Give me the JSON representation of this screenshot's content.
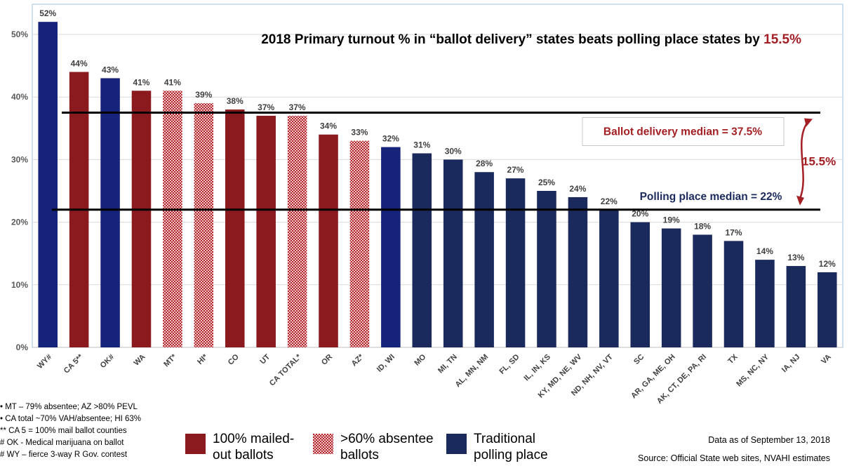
{
  "chart_data": {
    "type": "bar",
    "title_prefix": "2018 Primary turnout % in “ballot delivery” states beats polling place states by",
    "title_highlight": "15.5%",
    "categories": [
      "WY#",
      "CA 5**",
      "OK#",
      "WA",
      "MT*",
      "HI*",
      "CO",
      "UT",
      "CA TOTAL*",
      "OR",
      "AZ*",
      "ID, WI",
      "MO",
      "MI, TN",
      "AL, MN, NM",
      "FL, SD",
      "IL, IN, KS",
      "KY, MD, NE, WV",
      "ND, NH, NV, VT",
      "SC",
      "AR, GA, ME, OH",
      "AK, CT, DE, PA, RI",
      "TX",
      "MS, NC, NY",
      "IA, NJ",
      "VA"
    ],
    "values": [
      52,
      44,
      43,
      41,
      41,
      39,
      38,
      37,
      37,
      34,
      33,
      32,
      31,
      30,
      28,
      27,
      25,
      24,
      22,
      20,
      19,
      18,
      17,
      14,
      13,
      12
    ],
    "data_labels": [
      "52%",
      "44%",
      "43%",
      "41%",
      "41%",
      "39%",
      "38%",
      "37%",
      "37%",
      "34%",
      "33%",
      "32%",
      "31%",
      "30%",
      "28%",
      "27%",
      "25%",
      "24%",
      "22%",
      "20%",
      "19%",
      "18%",
      "17%",
      "14%",
      "13%",
      "12%"
    ],
    "bar_types": [
      "traditional",
      "mailed",
      "traditional",
      "mailed",
      "absentee",
      "absentee",
      "mailed",
      "mailed",
      "absentee",
      "mailed",
      "absentee",
      "traditional",
      "traditional",
      "traditional",
      "traditional",
      "traditional",
      "traditional",
      "traditional",
      "traditional",
      "traditional",
      "traditional",
      "traditional",
      "traditional",
      "traditional",
      "traditional",
      "traditional"
    ],
    "ylim": [
      0,
      55
    ],
    "y_ticks": [
      0,
      10,
      20,
      30,
      40,
      50
    ],
    "y_tick_labels": [
      "0%",
      "10%",
      "20%",
      "30%",
      "40%",
      "50%"
    ],
    "grid": true,
    "reference_lines": [
      {
        "value": 37.5,
        "label": "Ballot delivery median = 37.5%"
      },
      {
        "value": 22,
        "label": "Polling place median = 22%"
      }
    ],
    "difference_label": "15.5%",
    "legend": [
      {
        "key": "mailed",
        "label": "100% mailed-out ballots"
      },
      {
        "key": "absentee",
        "label": ">60% absentee ballots"
      },
      {
        "key": "traditional",
        "label": "Traditional polling place"
      }
    ]
  },
  "colors": {
    "mailed": "#8b1a1f",
    "absentee": "#b0252b",
    "traditional": "#1b2a5c",
    "traditional_dark": "#15237a",
    "highlight": "#a31f24",
    "grid": "#d9d9d9",
    "axis_border": "#9dc3e6"
  },
  "footnotes": [
    "•   MT – 79% absentee; AZ >80% PEVL",
    "•   CA total  ~70% VAH/absentee; HI 63%",
    "** CA 5 = 100% mail ballot counties",
    "# OK - Medical marijuana on ballot",
    "# WY – fierce 3-way R Gov. contest"
  ],
  "notes": {
    "data_as_of": "Data as of September 13, 2018",
    "source": "Source: Official State web sites, NVAHI estimates"
  }
}
